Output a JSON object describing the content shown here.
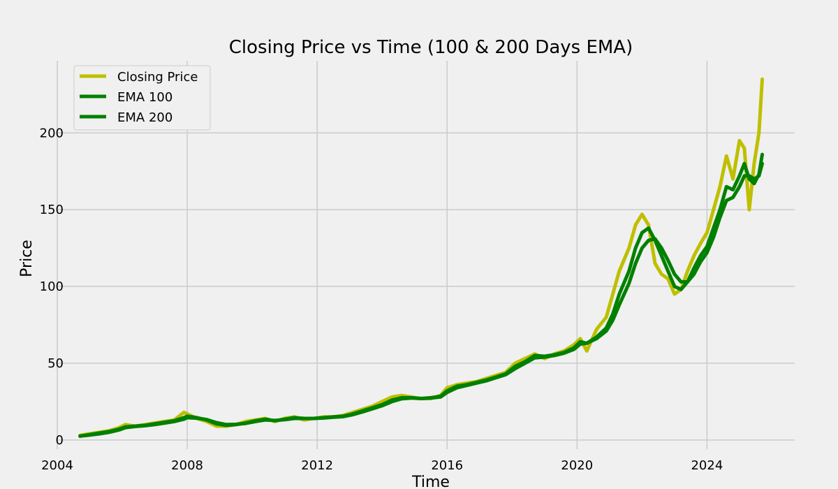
{
  "chart_data": {
    "type": "line",
    "title": "Closing Price vs Time (100 & 200 Days EMA)",
    "xlabel": "Time",
    "ylabel": "Price",
    "xlim": [
      2004.0,
      2026.7
    ],
    "ylim": [
      -6,
      247
    ],
    "x_ticks": [
      2004,
      2008,
      2012,
      2016,
      2020,
      2024
    ],
    "y_ticks": [
      0,
      50,
      100,
      150,
      200
    ],
    "grid": true,
    "legend_position": "top-left",
    "series": [
      {
        "name": "Closing Price",
        "color": "#bfbf00",
        "x": [
          2004.7,
          2005.0,
          2005.3,
          2005.6,
          2005.9,
          2006.1,
          2006.4,
          2006.7,
          2007.0,
          2007.3,
          2007.6,
          2007.9,
          2008.0,
          2008.3,
          2008.6,
          2008.9,
          2009.2,
          2009.5,
          2009.8,
          2010.1,
          2010.4,
          2010.7,
          2011.0,
          2011.3,
          2011.6,
          2011.9,
          2012.2,
          2012.5,
          2012.8,
          2013.1,
          2013.4,
          2013.7,
          2014.0,
          2014.3,
          2014.6,
          2014.9,
          2015.2,
          2015.5,
          2015.8,
          2016.0,
          2016.3,
          2016.6,
          2016.9,
          2017.2,
          2017.5,
          2017.8,
          2018.1,
          2018.4,
          2018.7,
          2019.0,
          2019.3,
          2019.6,
          2019.9,
          2020.1,
          2020.3,
          2020.6,
          2020.9,
          2021.1,
          2021.3,
          2021.6,
          2021.8,
          2022.0,
          2022.2,
          2022.4,
          2022.6,
          2022.8,
          2023.0,
          2023.2,
          2023.4,
          2023.6,
          2023.8,
          2024.0,
          2024.2,
          2024.4,
          2024.6,
          2024.8,
          2025.0,
          2025.15,
          2025.3,
          2025.45,
          2025.6,
          2025.7
        ],
        "y": [
          3,
          4,
          5,
          6,
          8,
          10,
          9,
          10,
          11,
          12,
          13,
          18,
          17,
          14,
          12,
          9,
          9,
          10,
          12,
          13,
          14,
          12,
          14,
          15,
          13,
          14,
          15,
          15,
          16,
          18,
          20,
          22,
          25,
          28,
          29,
          28,
          27,
          27,
          29,
          34,
          36,
          37,
          38,
          40,
          42,
          44,
          50,
          53,
          56,
          53,
          56,
          58,
          62,
          66,
          58,
          72,
          80,
          95,
          110,
          125,
          140,
          147,
          140,
          115,
          108,
          105,
          95,
          98,
          110,
          120,
          128,
          135,
          150,
          165,
          185,
          170,
          195,
          190,
          150,
          180,
          200,
          235
        ]
      },
      {
        "name": "EMA 100",
        "color": "#008000",
        "x": [
          2004.7,
          2005.0,
          2005.3,
          2005.6,
          2005.9,
          2006.1,
          2006.4,
          2006.7,
          2007.0,
          2007.3,
          2007.6,
          2007.9,
          2008.0,
          2008.3,
          2008.6,
          2008.9,
          2009.2,
          2009.5,
          2009.8,
          2010.1,
          2010.4,
          2010.7,
          2011.0,
          2011.3,
          2011.6,
          2011.9,
          2012.2,
          2012.5,
          2012.8,
          2013.1,
          2013.4,
          2013.7,
          2014.0,
          2014.3,
          2014.6,
          2014.9,
          2015.2,
          2015.5,
          2015.8,
          2016.0,
          2016.3,
          2016.6,
          2016.9,
          2017.2,
          2017.5,
          2017.8,
          2018.1,
          2018.4,
          2018.7,
          2019.0,
          2019.3,
          2019.6,
          2019.9,
          2020.1,
          2020.3,
          2020.6,
          2020.9,
          2021.1,
          2021.3,
          2021.6,
          2021.8,
          2022.0,
          2022.2,
          2022.4,
          2022.6,
          2022.8,
          2023.0,
          2023.2,
          2023.4,
          2023.6,
          2023.8,
          2024.0,
          2024.2,
          2024.4,
          2024.6,
          2024.8,
          2025.0,
          2025.15,
          2025.3,
          2025.45,
          2025.6,
          2025.7
        ],
        "y": [
          2.5,
          3.5,
          4.5,
          5.5,
          7,
          8.5,
          9,
          9.5,
          10.5,
          11.5,
          12.5,
          14.5,
          15.5,
          14.5,
          13,
          10.5,
          9.5,
          10,
          11,
          12.5,
          13.5,
          12.5,
          13.5,
          14.5,
          14,
          14,
          14.5,
          15,
          15.5,
          17,
          19,
          21,
          23,
          26,
          27.5,
          27.5,
          27,
          27.5,
          28.5,
          32,
          35,
          36,
          37.5,
          39,
          41,
          43,
          48,
          51,
          55,
          54.5,
          55.5,
          57,
          60,
          64,
          63,
          67,
          73,
          82,
          95,
          110,
          125,
          135,
          138,
          130,
          120,
          110,
          100,
          98,
          103,
          112,
          120,
          126,
          138,
          150,
          165,
          163,
          172,
          180,
          170,
          167,
          173,
          186
        ]
      },
      {
        "name": "EMA 200",
        "color": "#008000",
        "x": [
          2004.7,
          2005.0,
          2005.3,
          2005.6,
          2005.9,
          2006.1,
          2006.4,
          2006.7,
          2007.0,
          2007.3,
          2007.6,
          2007.9,
          2008.0,
          2008.3,
          2008.6,
          2008.9,
          2009.2,
          2009.5,
          2009.8,
          2010.1,
          2010.4,
          2010.7,
          2011.0,
          2011.3,
          2011.6,
          2011.9,
          2012.2,
          2012.5,
          2012.8,
          2013.1,
          2013.4,
          2013.7,
          2014.0,
          2014.3,
          2014.6,
          2014.9,
          2015.2,
          2015.5,
          2015.8,
          2016.0,
          2016.3,
          2016.6,
          2016.9,
          2017.2,
          2017.5,
          2017.8,
          2018.1,
          2018.4,
          2018.7,
          2019.0,
          2019.3,
          2019.6,
          2019.9,
          2020.1,
          2020.3,
          2020.6,
          2020.9,
          2021.1,
          2021.3,
          2021.6,
          2021.8,
          2022.0,
          2022.2,
          2022.4,
          2022.6,
          2022.8,
          2023.0,
          2023.2,
          2023.4,
          2023.6,
          2023.8,
          2024.0,
          2024.2,
          2024.4,
          2024.6,
          2024.8,
          2025.0,
          2025.15,
          2025.3,
          2025.45,
          2025.6,
          2025.7
        ],
        "y": [
          2.5,
          3.2,
          4,
          5,
          6.5,
          8,
          8.8,
          9.3,
          10,
          11,
          12,
          13.5,
          14.5,
          14.2,
          13.3,
          11.3,
          10,
          10.2,
          10.8,
          12,
          13,
          12.7,
          13.2,
          14,
          14,
          14,
          14.3,
          14.8,
          15.2,
          16.5,
          18.3,
          20.3,
          22.3,
          25,
          26.8,
          27.3,
          27,
          27.3,
          28,
          31,
          34,
          35.5,
          37,
          38.5,
          40.5,
          42.5,
          46.5,
          50,
          53.5,
          54,
          55,
          56.5,
          59,
          62.5,
          63,
          66,
          71,
          78,
          88,
          102,
          115,
          125,
          130,
          131,
          125,
          117,
          108,
          103,
          103,
          108,
          116,
          122,
          132,
          145,
          156,
          158,
          165,
          172,
          172,
          170,
          172,
          180
        ]
      }
    ]
  }
}
